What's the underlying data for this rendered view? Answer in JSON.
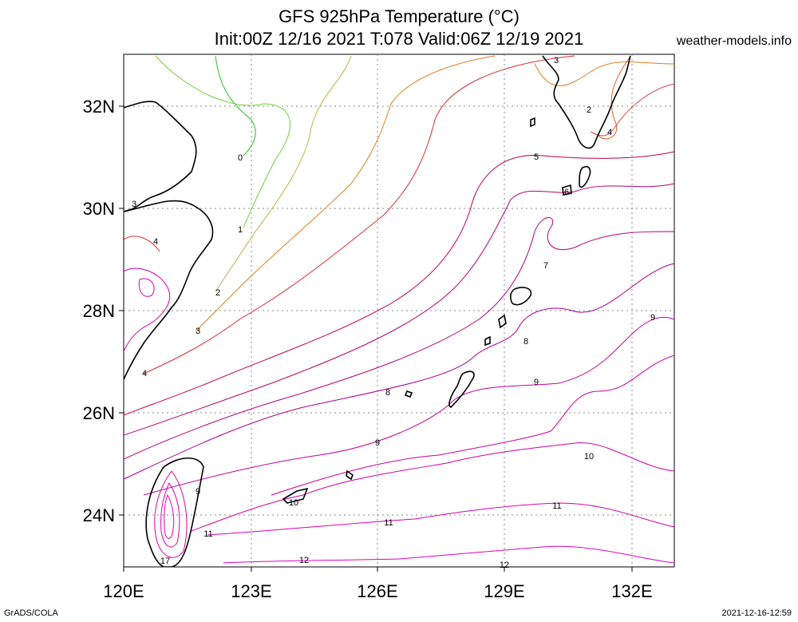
{
  "title_line1": "GFS 925hPa Temperature (°C)",
  "title_line2": "Init:00Z 12/16 2021 T:078 Valid:06Z 12/19 2021",
  "site": "weather-models.info",
  "footer_left": "GrADS/COLA",
  "footer_right": "2021-12-16-12:59",
  "lon_labels": [
    "120E",
    "123E",
    "126E",
    "129E",
    "132E"
  ],
  "lat_labels": [
    "32N",
    "30N",
    "28N",
    "26N",
    "24N"
  ],
  "contour_labels": [
    "0",
    "1",
    "2",
    "3",
    "4",
    "5",
    "6",
    "7",
    "8",
    "9",
    "10",
    "11",
    "12",
    "17",
    "2",
    "3",
    "4",
    "3",
    "4",
    "9",
    "9",
    "10",
    "11",
    "11",
    "12",
    "8",
    "8",
    "9"
  ],
  "colors": {
    "c0": "#20c020",
    "c1": "#80d040",
    "c2": "#c09030",
    "c3": "#e08020",
    "c4": "#d83030",
    "c5": "#c00040",
    "c6": "#b80070",
    "c7": "#b00080",
    "c8": "#a80090",
    "c9": "#c000a0",
    "c10": "#d000a0",
    "c11": "#d800b0",
    "c12": "#e000c0"
  }
}
